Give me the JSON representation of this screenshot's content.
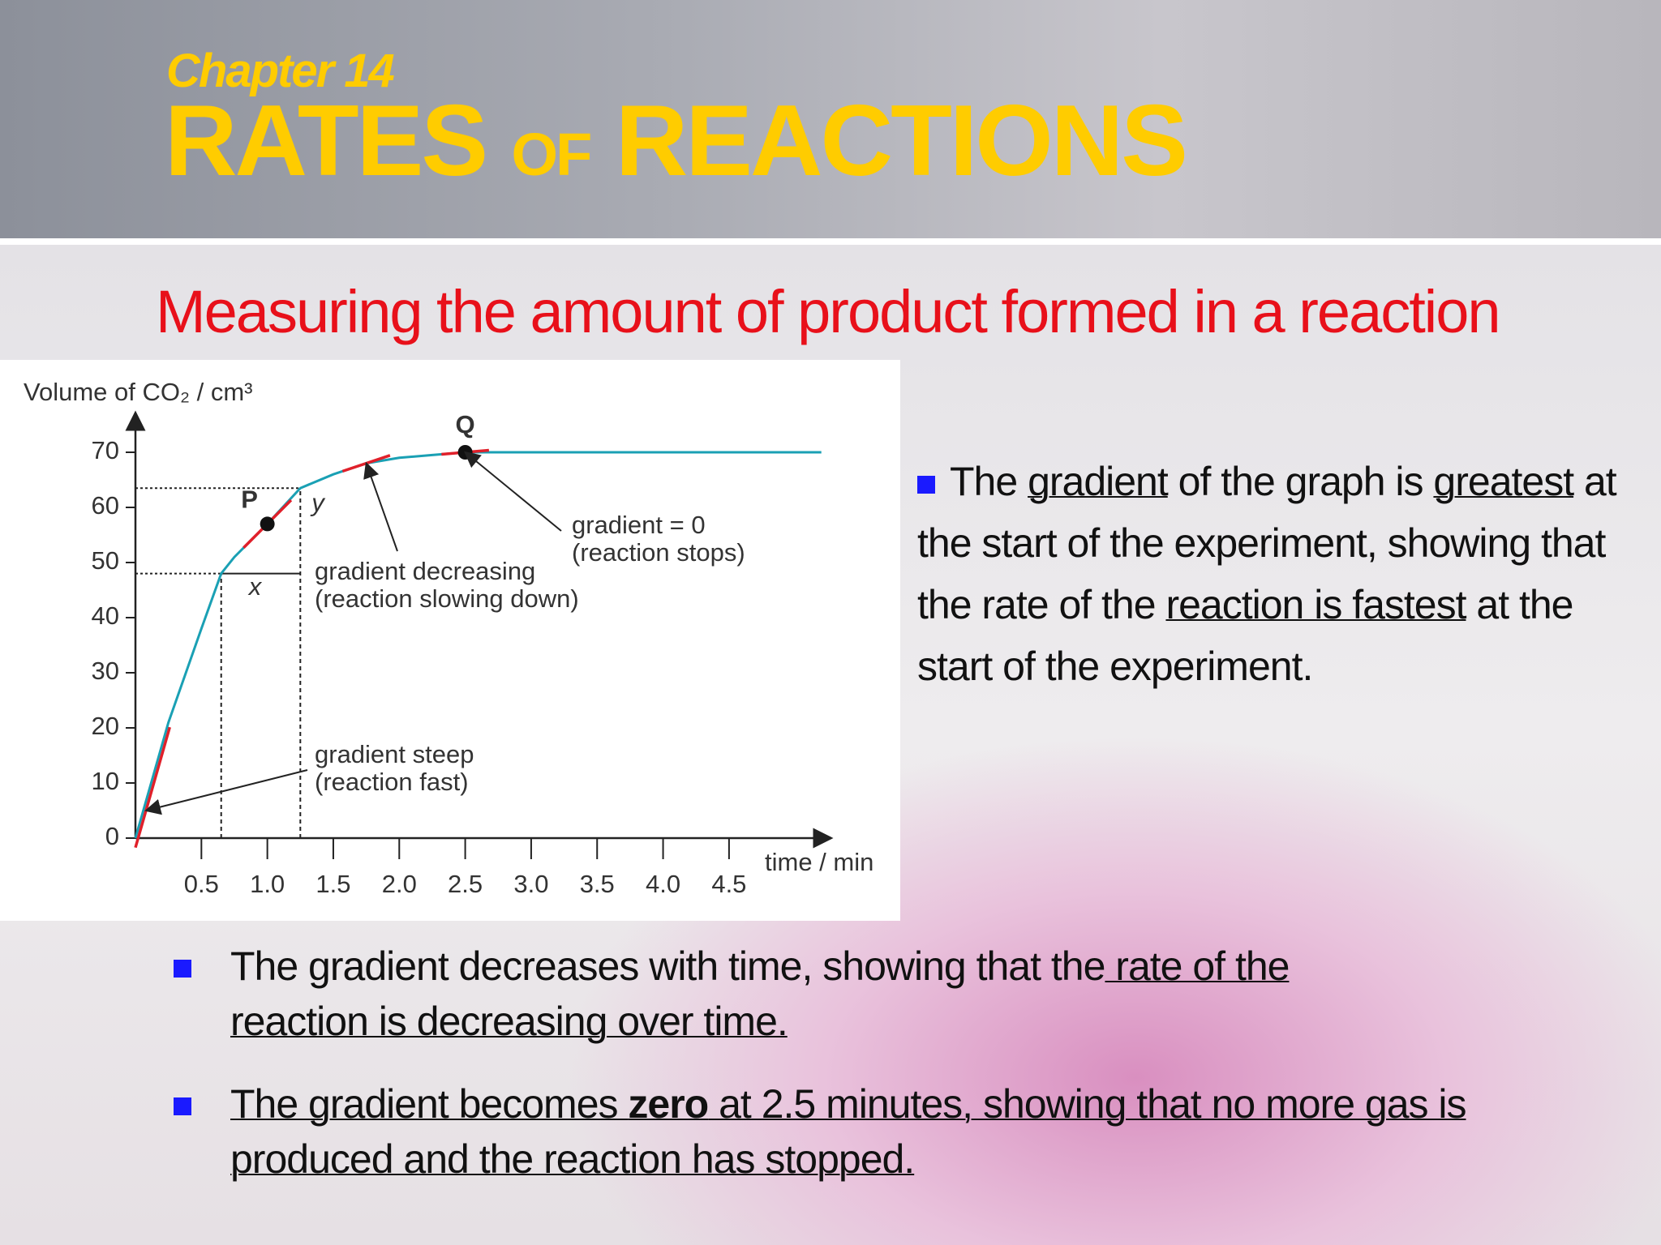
{
  "header": {
    "chapter": "Chapter 14",
    "title_words": [
      "RATES",
      "OF",
      "REACTIONS"
    ]
  },
  "subtitle": "Measuring the amount of product formed in a reaction",
  "chart_data": {
    "type": "line",
    "y_label": "Volume of CO₂ / cm³",
    "x_label": "time / min",
    "x": [
      0,
      0.25,
      0.5,
      0.65,
      0.75,
      1.0,
      1.25,
      1.5,
      1.75,
      2.0,
      2.25,
      2.5,
      3.0,
      3.5,
      4.0,
      4.5,
      5.2
    ],
    "values": [
      0,
      21,
      38,
      48,
      51,
      57,
      63.5,
      66,
      68,
      69,
      69.5,
      70,
      70,
      70,
      70,
      70,
      70
    ],
    "color": "#1aa0b4",
    "tangent_color": "#e0202a",
    "xlim": [
      0,
      5.3
    ],
    "ylim": [
      0,
      75
    ],
    "xticks": [
      0.5,
      {
        "value": 1,
        "label": "1.0"
      },
      1.5,
      {
        "value": 2,
        "label": "2.0"
      },
      2.5,
      {
        "value": 3,
        "label": "3.0"
      },
      3.5,
      {
        "value": 4,
        "label": "4.0"
      },
      4.5
    ],
    "yticks": [
      0,
      10,
      20,
      30,
      40,
      50,
      60,
      70
    ],
    "points": [
      {
        "label": "P",
        "x": 1.0,
        "y": 57
      },
      {
        "label": "Q",
        "x": 2.5,
        "y": 70
      }
    ],
    "guides": [
      {
        "label": "x",
        "x": 0.65,
        "y": 48
      },
      {
        "label": "y",
        "x": 1.25,
        "y": 63.5
      }
    ],
    "annotations": [
      {
        "lines": [
          "gradient = 0",
          "(reaction stops)"
        ],
        "x": 2.5,
        "y": 70
      },
      {
        "lines": [
          "gradient decreasing",
          "(reaction slowing down)"
        ],
        "x": 1.75,
        "y": 68
      },
      {
        "lines": [
          "gradient steep",
          "(reaction fast)"
        ],
        "x": 0.08,
        "y": 5
      }
    ]
  },
  "side_text": [
    {
      "text": "The "
    },
    {
      "text": "gradient",
      "u": true
    },
    {
      "text": " of the graph is "
    },
    {
      "text": "greatest",
      "u": true
    },
    {
      "text": " at the start of the experiment, showing that the rate of the "
    },
    {
      "text": "reaction is fastest",
      "u": true
    },
    {
      "text": " at the start of the experiment."
    }
  ],
  "bullets": [
    [
      {
        "text": "The gradient decreases with time, showing that the"
      },
      {
        "text": " rate of the reaction is decreasing over time.",
        "u": true
      }
    ],
    [
      {
        "text": "The gradient becomes ",
        "u": true
      },
      {
        "text": "zero",
        "u": true,
        "b": true
      },
      {
        "text": " at 2.5 minutes, showing that no more gas is produced and the reaction has stopped.",
        "u": true
      }
    ]
  ]
}
